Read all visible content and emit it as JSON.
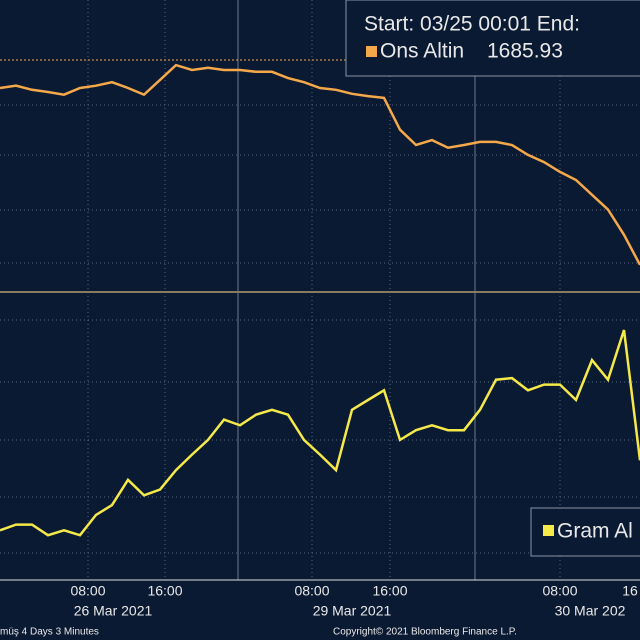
{
  "chart_data": [
    {
      "type": "line",
      "header": "Start: 03/25 00:01 End:",
      "series": [
        {
          "name": "Ons Altin",
          "value_label": "1685.93",
          "color": "#f4a84a",
          "values": [
            1725.4,
            1725.9,
            1725.0,
            1724.5,
            1723.9,
            1725.4,
            1725.9,
            1726.7,
            1725.4,
            1723.9,
            1727.2,
            1730.5,
            1729.4,
            1729.9,
            1729.4,
            1729.4,
            1729.0,
            1729.0,
            1727.6,
            1726.7,
            1725.4,
            1725.0,
            1724.1,
            1723.6,
            1723.2,
            1716.1,
            1712.7,
            1713.8,
            1712.1,
            1712.7,
            1713.4,
            1713.4,
            1712.7,
            1710.5,
            1708.9,
            1706.7,
            1704.9,
            1701.6,
            1698.3,
            1692.7,
            1686.0
          ]
        }
      ],
      "ylim": [
        1680.4,
        1745
      ]
    },
    {
      "type": "line",
      "series": [
        {
          "name": "Gram Al",
          "color": "#f5e94a",
          "values": [
            446.1,
            446.8,
            446.8,
            445.5,
            446.1,
            445.5,
            448.0,
            449.2,
            452.3,
            450.4,
            451.1,
            453.5,
            455.4,
            457.2,
            459.7,
            459.0,
            460.3,
            460.9,
            460.3,
            457.2,
            455.4,
            453.5,
            460.9,
            462.1,
            463.3,
            457.2,
            458.4,
            459.0,
            458.4,
            458.4,
            460.9,
            464.6,
            464.8,
            463.3,
            464.0,
            464.0,
            462.1,
            467.0,
            464.6,
            470.7,
            454.7
          ]
        }
      ],
      "ylim": [
        440,
        475
      ],
      "x_labels": [
        "08:00",
        "16:00",
        "08:00",
        "16:00",
        "08:00",
        "16"
      ],
      "date_labels": [
        "26 Mar 2021",
        "29 Mar 2021",
        "30 Mar 202"
      ]
    },
    {
      "type": "footer",
      "left": "müş 4 Days 3 Minutes",
      "right": "Copyright© 2021 Bloomberg Finance L.P."
    }
  ]
}
